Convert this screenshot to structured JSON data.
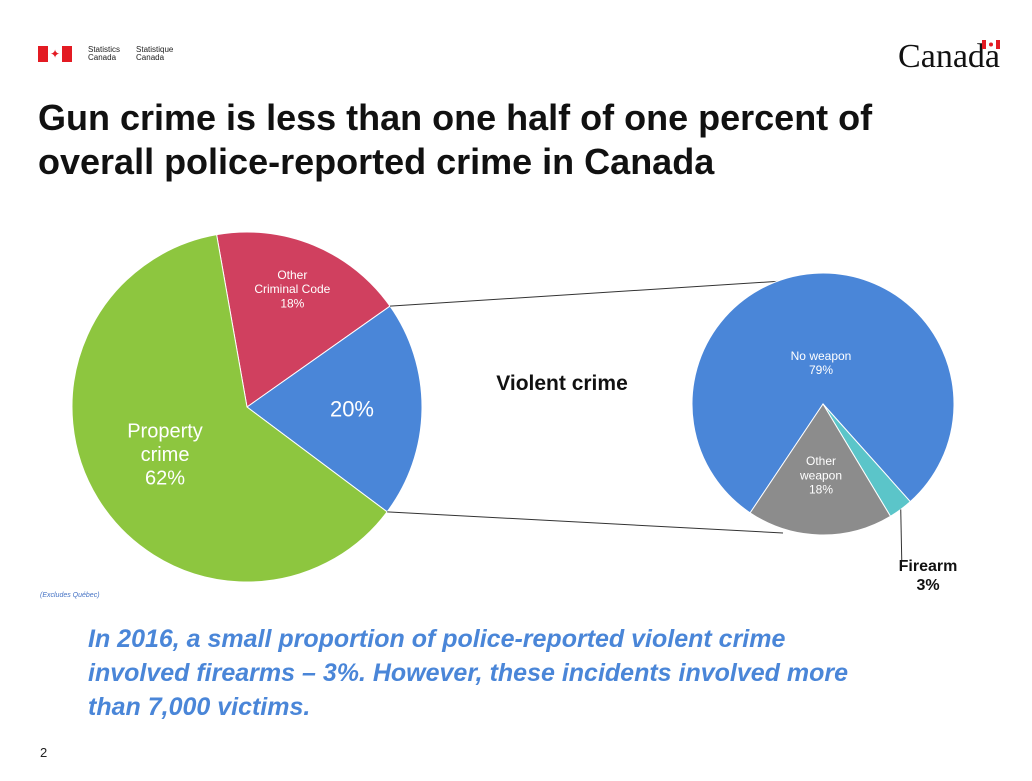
{
  "header": {
    "agency_en_line1": "Statistics",
    "agency_en_line2": "Canada",
    "agency_fr_line1": "Statistique",
    "agency_fr_line2": "Canada",
    "wordmark": "Canada"
  },
  "title_line1": "Gun crime is less than one half of one percent of",
  "title_line2": "overall police-reported crime in Canada",
  "chart_data": [
    {
      "type": "pie",
      "title": "",
      "slices": [
        {
          "label_line1": "Other",
          "label_line2": "Criminal Code",
          "pct_label": "18%",
          "value": 18,
          "color": "#d0405f"
        },
        {
          "label_line1": "",
          "label_line2": "",
          "pct_label": "20%",
          "value": 20,
          "color": "#4a86d8"
        },
        {
          "label_line1": "Property",
          "label_line2": "crime",
          "pct_label": "62%",
          "value": 62,
          "color": "#8dc63f"
        }
      ]
    },
    {
      "type": "pie",
      "title": "Violent crime",
      "slices": [
        {
          "label_line1": "No weapon",
          "label_line2": "",
          "pct_label": "79%",
          "value": 79,
          "color": "#4a86d8"
        },
        {
          "label_line1": "Firearm",
          "label_line2": "",
          "pct_label": "3%",
          "value": 3,
          "color": "#5bc5c9"
        },
        {
          "label_line1": "Other",
          "label_line2": "weapon",
          "pct_label": "18%",
          "value": 18,
          "color": "#8c8c8c"
        }
      ]
    }
  ],
  "note": "(Excludes Québec)",
  "caption_line1": "In 2016, a small proportion of police-reported violent crime",
  "caption_line2": "involved firearms – 3%. However, these incidents involved more",
  "caption_line3": "than 7,000 victims.",
  "page_number": "2"
}
